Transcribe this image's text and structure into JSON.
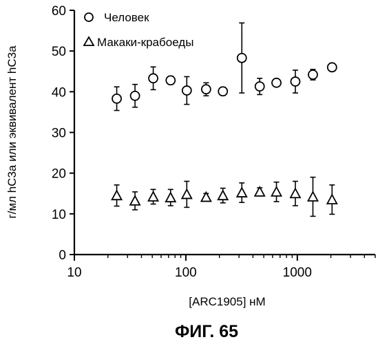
{
  "figure": {
    "caption": "ФИГ. 65"
  },
  "chart_data": {
    "type": "scatter",
    "xscale": "log",
    "xlim": [
      10,
      5000
    ],
    "ylim": [
      0,
      60
    ],
    "xlabel": "[ARC1905] нМ",
    "ylabel": "г/мл hC3a или эквивалент hC3a",
    "grid": false,
    "legend_position": "top-left",
    "x_ticks": [
      10,
      100,
      1000
    ],
    "x_tick_labels": [
      "10",
      "100",
      "1000"
    ],
    "y_ticks": [
      0,
      10,
      20,
      30,
      40,
      50,
      60
    ],
    "y_tick_labels": [
      "0",
      "10",
      "20",
      "30",
      "40",
      "50",
      "60"
    ],
    "series": [
      {
        "name": "Человек",
        "marker": "circle",
        "color": "#000000",
        "x": [
          24,
          35,
          51,
          73,
          102,
          152,
          215,
          318,
          460,
          650,
          960,
          1380,
          2050
        ],
        "y": [
          38.3,
          39.0,
          43.3,
          42.8,
          40.3,
          40.6,
          40.1,
          48.3,
          41.3,
          42.2,
          42.5,
          44.2,
          46.0
        ],
        "err": [
          2.9,
          2.8,
          2.8,
          1.0,
          3.4,
          1.6,
          1.0,
          8.6,
          2.0,
          0.8,
          2.8,
          1.3,
          0.3
        ]
      },
      {
        "name": "Макаки-крабоеды",
        "marker": "triangle",
        "color": "#000000",
        "x": [
          24,
          35,
          51,
          73,
          102,
          152,
          215,
          318,
          460,
          650,
          960,
          1380,
          2050
        ],
        "y": [
          14.5,
          13.2,
          14.2,
          14.0,
          14.8,
          14.1,
          14.5,
          15.2,
          15.4,
          15.4,
          15.0,
          14.2,
          13.5
        ],
        "err": [
          2.6,
          2.2,
          1.8,
          2.0,
          3.2,
          0.9,
          1.8,
          2.4,
          1.0,
          2.4,
          3.0,
          4.8,
          3.6
        ]
      }
    ]
  }
}
